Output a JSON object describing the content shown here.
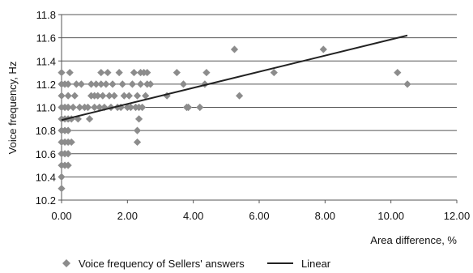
{
  "chart_data": {
    "type": "scatter",
    "xlabel": "Area difference, %",
    "ylabel": "Voice frequency, Hz",
    "xlim": [
      0,
      12
    ],
    "ylim": [
      10.2,
      11.8
    ],
    "x_ticks": [
      "0.00",
      "2.00",
      "4.00",
      "6.00",
      "8.00",
      "10.00",
      "12.00"
    ],
    "y_ticks": [
      "10.2",
      "10.4",
      "10.6",
      "10.8",
      "11.0",
      "11.2",
      "11.4",
      "11.6",
      "11.8"
    ],
    "grid": "horizontal",
    "legend_position": "bottom",
    "series": [
      {
        "name": "Voice frequency of Sellers' answers",
        "type": "scatter",
        "color": "#8c8c8c",
        "marker": "diamond",
        "points": [
          [
            0.0,
            10.3
          ],
          [
            0.0,
            10.4
          ],
          [
            0.0,
            10.5
          ],
          [
            0.0,
            10.6
          ],
          [
            0.0,
            10.7
          ],
          [
            0.0,
            10.8
          ],
          [
            0.0,
            10.9
          ],
          [
            0.0,
            11.0
          ],
          [
            0.0,
            11.1
          ],
          [
            0.0,
            11.2
          ],
          [
            0.0,
            11.3
          ],
          [
            0.1,
            10.5
          ],
          [
            0.1,
            10.6
          ],
          [
            0.1,
            10.7
          ],
          [
            0.1,
            10.8
          ],
          [
            0.1,
            10.9
          ],
          [
            0.1,
            11.0
          ],
          [
            0.1,
            11.2
          ],
          [
            0.2,
            10.5
          ],
          [
            0.2,
            10.6
          ],
          [
            0.2,
            10.7
          ],
          [
            0.2,
            10.8
          ],
          [
            0.2,
            10.9
          ],
          [
            0.2,
            11.0
          ],
          [
            0.2,
            11.1
          ],
          [
            0.2,
            11.2
          ],
          [
            0.25,
            11.3
          ],
          [
            0.3,
            10.7
          ],
          [
            0.3,
            10.9
          ],
          [
            0.35,
            11.0
          ],
          [
            0.4,
            11.1
          ],
          [
            0.45,
            11.2
          ],
          [
            0.5,
            10.9
          ],
          [
            0.55,
            11.0
          ],
          [
            0.6,
            11.2
          ],
          [
            0.7,
            11.0
          ],
          [
            0.8,
            11.0
          ],
          [
            0.85,
            10.9
          ],
          [
            0.9,
            11.1
          ],
          [
            0.9,
            11.2
          ],
          [
            1.0,
            11.0
          ],
          [
            1.0,
            11.1
          ],
          [
            1.05,
            11.2
          ],
          [
            1.1,
            11.1
          ],
          [
            1.15,
            11.0
          ],
          [
            1.2,
            11.2
          ],
          [
            1.2,
            11.3
          ],
          [
            1.25,
            11.1
          ],
          [
            1.3,
            11.0
          ],
          [
            1.35,
            11.2
          ],
          [
            1.4,
            11.3
          ],
          [
            1.45,
            11.1
          ],
          [
            1.5,
            11.0
          ],
          [
            1.55,
            11.2
          ],
          [
            1.6,
            11.1
          ],
          [
            1.7,
            11.0
          ],
          [
            1.75,
            11.3
          ],
          [
            1.8,
            11.0
          ],
          [
            1.85,
            11.2
          ],
          [
            1.9,
            11.1
          ],
          [
            2.0,
            11.0
          ],
          [
            2.05,
            11.1
          ],
          [
            2.1,
            11.0
          ],
          [
            2.15,
            11.2
          ],
          [
            2.2,
            11.3
          ],
          [
            2.25,
            11.0
          ],
          [
            2.3,
            11.1
          ],
          [
            2.3,
            10.7
          ],
          [
            2.3,
            10.8
          ],
          [
            2.35,
            10.9
          ],
          [
            2.35,
            11.0
          ],
          [
            2.4,
            11.2
          ],
          [
            2.4,
            11.3
          ],
          [
            2.45,
            11.0
          ],
          [
            2.5,
            11.3
          ],
          [
            2.55,
            11.1
          ],
          [
            2.6,
            11.2
          ],
          [
            2.6,
            11.3
          ],
          [
            2.7,
            11.2
          ],
          [
            3.2,
            11.1
          ],
          [
            3.5,
            11.3
          ],
          [
            3.7,
            11.2
          ],
          [
            3.8,
            11.0
          ],
          [
            3.85,
            11.0
          ],
          [
            4.2,
            11.0
          ],
          [
            4.35,
            11.2
          ],
          [
            4.4,
            11.3
          ],
          [
            5.25,
            11.5
          ],
          [
            5.4,
            11.1
          ],
          [
            6.45,
            11.3
          ],
          [
            7.95,
            11.5
          ],
          [
            10.2,
            11.3
          ],
          [
            10.5,
            11.2
          ]
        ]
      },
      {
        "name": "Linear",
        "type": "line",
        "color": "#222222",
        "points": [
          [
            0.0,
            10.89
          ],
          [
            10.5,
            11.62
          ]
        ]
      }
    ]
  }
}
